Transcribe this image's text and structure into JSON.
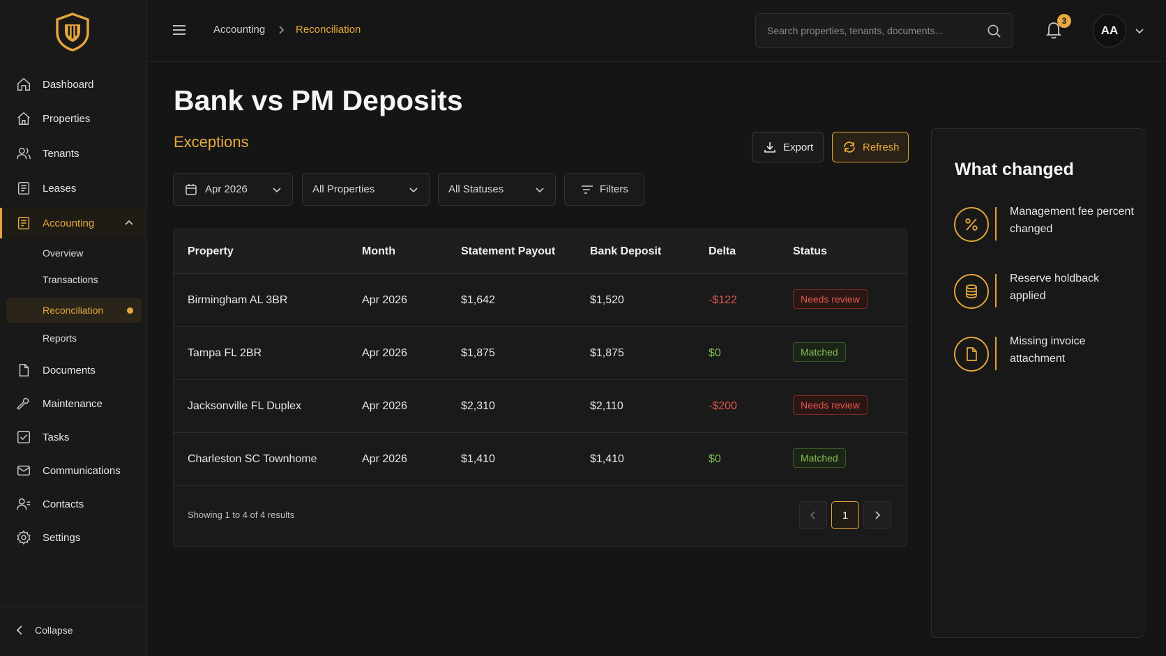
{
  "sidebar": {
    "logo_icon": "shield-logo-icon",
    "items": [
      {
        "label": "Dashboard",
        "icon": "home-icon"
      },
      {
        "label": "Properties",
        "icon": "house-icon"
      },
      {
        "label": "Tenants",
        "icon": "users-icon"
      },
      {
        "label": "Leases",
        "icon": "document-icon"
      },
      {
        "label": "Accounting",
        "icon": "ledger-icon",
        "active": true,
        "expanded": true
      },
      {
        "label": "Documents",
        "icon": "file-icon"
      },
      {
        "label": "Maintenance",
        "icon": "wrench-icon"
      },
      {
        "label": "Tasks",
        "icon": "checkbox-icon"
      },
      {
        "label": "Communications",
        "icon": "mail-icon"
      },
      {
        "label": "Contacts",
        "icon": "contacts-icon"
      },
      {
        "label": "Settings",
        "icon": "gear-icon"
      }
    ],
    "accounting_sub": [
      {
        "label": "Overview"
      },
      {
        "label": "Transactions"
      },
      {
        "label": "Reconciliation",
        "active": true
      },
      {
        "label": "Reports"
      }
    ],
    "collapse_label": "Collapse"
  },
  "topbar": {
    "breadcrumb": [
      "Accounting",
      "Reconciliation"
    ],
    "search_placeholder": "Search properties, tenants, documents...",
    "notification_count": "3",
    "avatar_initials": "AA"
  },
  "main": {
    "title": "Bank vs PM Deposits",
    "subtitle": "Exceptions",
    "export_label": "Export",
    "refresh_label": "Refresh",
    "filters": {
      "month": "Apr 2026",
      "properties": "All Properties",
      "statuses": "All Statuses",
      "filters_label": "Filters"
    }
  },
  "table": {
    "columns": [
      "Property",
      "Month",
      "Statement Payout",
      "Bank Deposit",
      "Delta",
      "Status"
    ],
    "rows": [
      {
        "property": "Birmingham AL 3BR",
        "month": "Apr 2026",
        "payout": "$1,642",
        "deposit": "$1,520",
        "delta": "-$122",
        "status": "Needs review"
      },
      {
        "property": "Tampa FL 2BR",
        "month": "Apr 2026",
        "payout": "$1,875",
        "deposit": "$1,875",
        "delta": "$0",
        "status": "Matched"
      },
      {
        "property": "Jacksonville FL Duplex",
        "month": "Apr 2026",
        "payout": "$2,310",
        "deposit": "$2,110",
        "delta": "-$200",
        "status": "Needs review"
      },
      {
        "property": "Charleston SC Townhome",
        "month": "Apr 2026",
        "payout": "$1,410",
        "deposit": "$1,410",
        "delta": "$0",
        "status": "Matched"
      }
    ],
    "showing_text": "Showing 1 to 4 of 4 results",
    "current_page": "1"
  },
  "what_changed": {
    "title": "What changed",
    "items": [
      {
        "text": "Management fee percent changed",
        "icon": "percent-icon"
      },
      {
        "text": "Reserve holdback applied",
        "icon": "database-icon"
      },
      {
        "text": "Missing invoice attachment",
        "icon": "file-icon"
      }
    ]
  },
  "colors": {
    "accent": "#e8a93f",
    "background": "#151515",
    "negative": "#e2574c",
    "positive": "#7dbd54"
  }
}
